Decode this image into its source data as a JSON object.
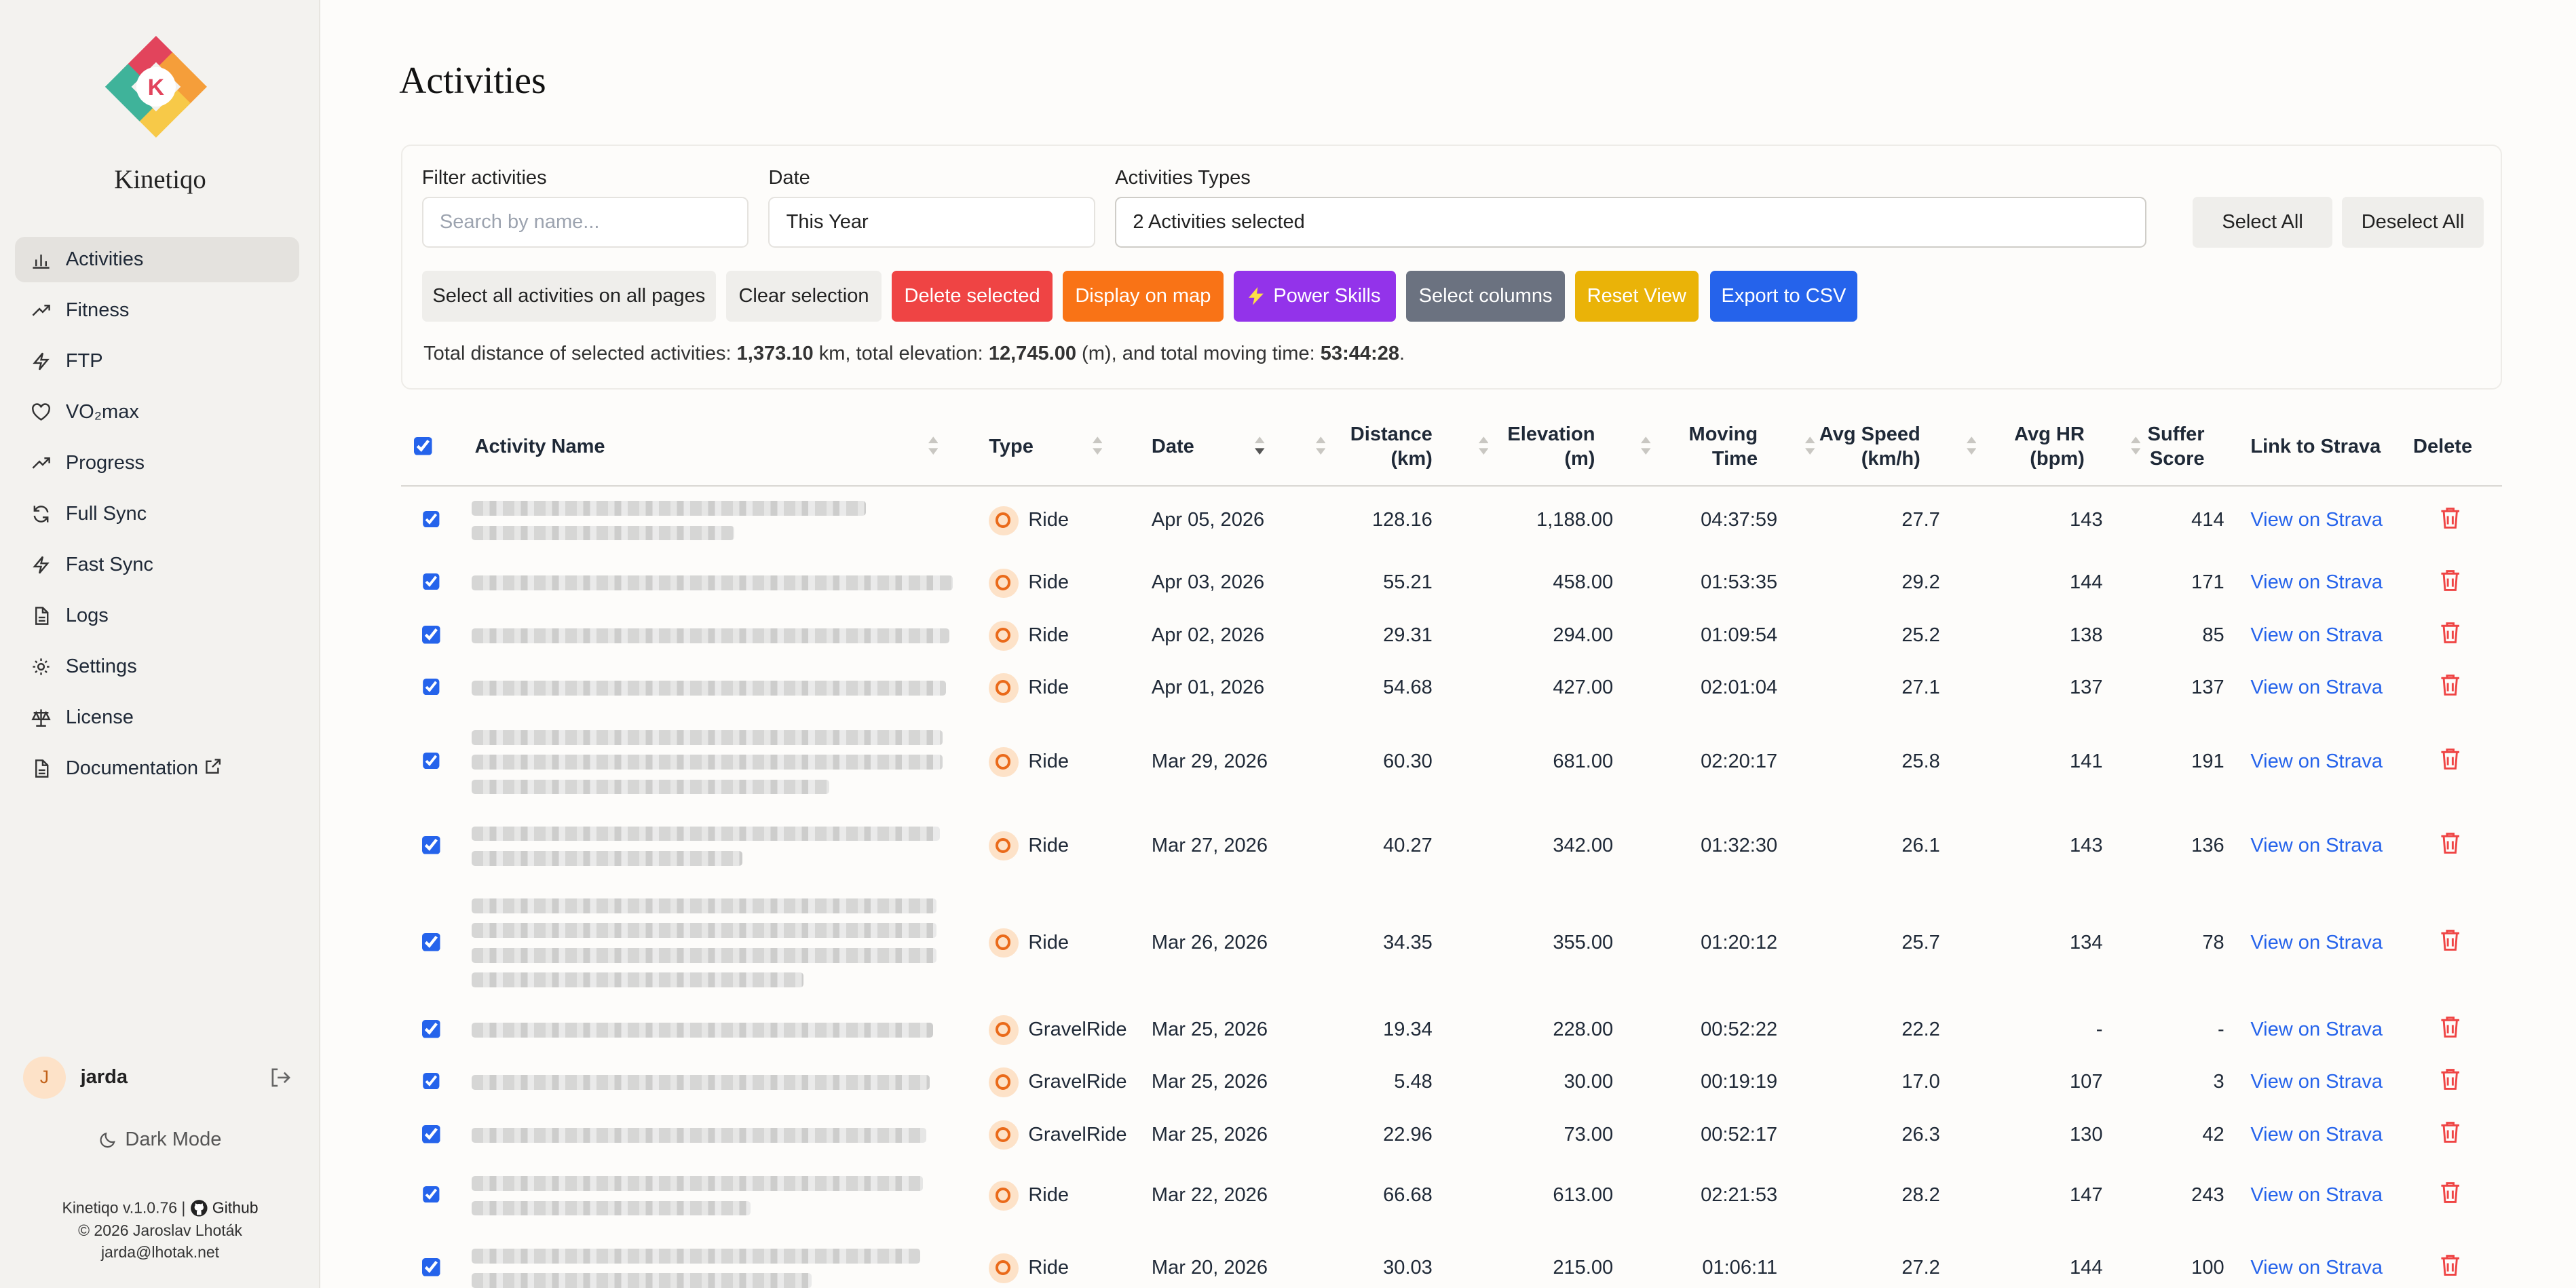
{
  "app": {
    "name": "Kinetiqo",
    "logo_letter": "K"
  },
  "sidebar": {
    "items": [
      {
        "label": "Activities",
        "icon": "bar-chart-icon"
      },
      {
        "label": "Fitness",
        "icon": "trending-up-icon"
      },
      {
        "label": "FTP",
        "icon": "zap-icon"
      },
      {
        "label": "VO₂max",
        "icon": "heart-icon"
      },
      {
        "label": "Progress",
        "icon": "trending-up-icon"
      },
      {
        "label": "Full Sync",
        "icon": "refresh-icon"
      },
      {
        "label": "Fast Sync",
        "icon": "zap-icon"
      },
      {
        "label": "Logs",
        "icon": "file-icon"
      },
      {
        "label": "Settings",
        "icon": "gear-icon"
      },
      {
        "label": "License",
        "icon": "scale-icon"
      },
      {
        "label": "Documentation",
        "icon": "file-icon"
      }
    ],
    "user": {
      "initial": "J",
      "name": "jarda"
    },
    "dark_mode_label": "Dark Mode",
    "footer": {
      "version": "Kinetiqo v.1.0.76 |",
      "github": "Github",
      "copyright": "© 2026 Jaroslav Lhoták",
      "email": "jarda@lhotak.net"
    }
  },
  "page": {
    "title": "Activities"
  },
  "filters": {
    "filter_label": "Filter activities",
    "search_placeholder": "Search by name...",
    "date_label": "Date",
    "date_value": "This Year",
    "types_label": "Activities Types",
    "types_value": "2 Activities selected",
    "select_all": "Select All",
    "deselect_all": "Deselect All"
  },
  "actions": {
    "select_all_pages": "Select all activities on all pages",
    "clear_selection": "Clear selection",
    "delete_selected": "Delete selected",
    "display_on_map": "Display on map",
    "power_skills": "Power Skills",
    "select_columns": "Select columns",
    "reset_view": "Reset View",
    "export_csv": "Export to CSV"
  },
  "totals": {
    "prefix": "Total distance of selected activities: ",
    "distance": "1,373.10",
    "distance_unit": " km, total elevation: ",
    "elevation": "12,745.00",
    "elevation_unit": " (m), and total moving time: ",
    "time": "53:44:28",
    "suffix": "."
  },
  "colors": {
    "delete": "#ef4444",
    "map": "#f97316",
    "power": "#9333ea",
    "columns": "#6b7280",
    "reset": "#eab308",
    "export": "#2563eb",
    "link": "#2563eb"
  },
  "table": {
    "headers": {
      "name": "Activity Name",
      "type": "Type",
      "date": "Date",
      "distance": [
        "Distance",
        "(km)"
      ],
      "elevation": [
        "Elevation",
        "(m)"
      ],
      "moving": [
        "Moving",
        "Time"
      ],
      "speed": [
        "Avg Speed",
        "(km/h)"
      ],
      "hr": [
        "Avg HR",
        "(bpm)"
      ],
      "suffer": [
        "Suffer",
        "Score"
      ],
      "strava": "Link to Strava",
      "delete": "Delete"
    },
    "link_text": "View on Strava",
    "rows": [
      {
        "type": "Ride",
        "date": "Apr 05, 2026",
        "distance": "128.16",
        "elevation": "1,188.00",
        "time": "04:37:59",
        "speed": "27.7",
        "hr": "143",
        "suffer": "414"
      },
      {
        "type": "Ride",
        "date": "Apr 03, 2026",
        "distance": "55.21",
        "elevation": "458.00",
        "time": "01:53:35",
        "speed": "29.2",
        "hr": "144",
        "suffer": "171"
      },
      {
        "type": "Ride",
        "date": "Apr 02, 2026",
        "distance": "29.31",
        "elevation": "294.00",
        "time": "01:09:54",
        "speed": "25.2",
        "hr": "138",
        "suffer": "85"
      },
      {
        "type": "Ride",
        "date": "Apr 01, 2026",
        "distance": "54.68",
        "elevation": "427.00",
        "time": "02:01:04",
        "speed": "27.1",
        "hr": "137",
        "suffer": "137"
      },
      {
        "type": "Ride",
        "date": "Mar 29, 2026",
        "distance": "60.30",
        "elevation": "681.00",
        "time": "02:20:17",
        "speed": "25.8",
        "hr": "141",
        "suffer": "191"
      },
      {
        "type": "Ride",
        "date": "Mar 27, 2026",
        "distance": "40.27",
        "elevation": "342.00",
        "time": "01:32:30",
        "speed": "26.1",
        "hr": "143",
        "suffer": "136"
      },
      {
        "type": "Ride",
        "date": "Mar 26, 2026",
        "distance": "34.35",
        "elevation": "355.00",
        "time": "01:20:12",
        "speed": "25.7",
        "hr": "134",
        "suffer": "78"
      },
      {
        "type": "GravelRide",
        "date": "Mar 25, 2026",
        "distance": "19.34",
        "elevation": "228.00",
        "time": "00:52:22",
        "speed": "22.2",
        "hr": "-",
        "suffer": "-"
      },
      {
        "type": "GravelRide",
        "date": "Mar 25, 2026",
        "distance": "5.48",
        "elevation": "30.00",
        "time": "00:19:19",
        "speed": "17.0",
        "hr": "107",
        "suffer": "3"
      },
      {
        "type": "GravelRide",
        "date": "Mar 25, 2026",
        "distance": "22.96",
        "elevation": "73.00",
        "time": "00:52:17",
        "speed": "26.3",
        "hr": "130",
        "suffer": "42"
      },
      {
        "type": "Ride",
        "date": "Mar 22, 2026",
        "distance": "66.68",
        "elevation": "613.00",
        "time": "02:21:53",
        "speed": "28.2",
        "hr": "147",
        "suffer": "243"
      },
      {
        "type": "Ride",
        "date": "Mar 20, 2026",
        "distance": "30.03",
        "elevation": "215.00",
        "time": "01:06:11",
        "speed": "27.2",
        "hr": "144",
        "suffer": "100"
      }
    ]
  }
}
